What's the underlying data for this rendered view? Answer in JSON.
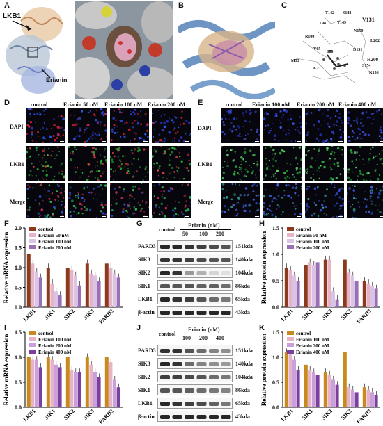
{
  "panels": {
    "A": {
      "letter": "A",
      "lkb1": "LKB1",
      "erianin": "Erianin"
    },
    "B": {
      "letter": "B"
    },
    "C": {
      "letter": "C",
      "residues": [
        "T142",
        "S148",
        "T98",
        "T149",
        "V131",
        "R100",
        "N150",
        "L202",
        "V65",
        "I75",
        "D151",
        "H200",
        "M53",
        "G76",
        "S154",
        "K27",
        "K156"
      ]
    },
    "D": {
      "letter": "D",
      "cols": [
        "control",
        "Erianin 50 nM",
        "Erianin 100 nM",
        "Erianin 200 nM"
      ],
      "rows": [
        "DAPI",
        "LKB1",
        "Merge"
      ]
    },
    "E": {
      "letter": "E",
      "cols": [
        "control",
        "Erianin 100 nM",
        "Erianin 200 nM",
        "Erianin 400 nM"
      ],
      "rows": [
        "DAPI",
        "LKB1",
        "Merge"
      ]
    },
    "G": {
      "letter": "G",
      "control": "control",
      "erianin_hdr": "Erianin (nM)",
      "doses": [
        "50",
        "100",
        "200"
      ],
      "rows": [
        {
          "name": "PARD3",
          "kda": "151kda"
        },
        {
          "name": "SIK3",
          "kda": "140kda"
        },
        {
          "name": "SIK2",
          "kda": "104kda"
        },
        {
          "name": "SIK1",
          "kda": "86kda"
        },
        {
          "name": "LKB1",
          "kda": "65kda"
        },
        {
          "name": "β-actin",
          "kda": "43kda"
        }
      ]
    },
    "J": {
      "letter": "J",
      "control": "control",
      "erianin_hdr": "Erianin (nM)",
      "doses": [
        "100",
        "200",
        "400"
      ],
      "rows": [
        {
          "name": "PARD3",
          "kda": "151kda"
        },
        {
          "name": "SIK3",
          "kda": "140kda"
        },
        {
          "name": "SIK2",
          "kda": "104kda"
        },
        {
          "name": "SIK1",
          "kda": "86kda"
        },
        {
          "name": "LKB1",
          "kda": "65kda"
        },
        {
          "name": "β-actin",
          "kda": "43kda"
        }
      ]
    }
  },
  "chart_data": [
    {
      "panel": "F",
      "type": "bar",
      "ylabel": "Relative mRNA expression",
      "ylim": [
        0,
        2.0
      ],
      "yticks": [
        "0.0",
        "0.5",
        "1.0",
        "1.5",
        "2.0"
      ],
      "categories": [
        "LKB1",
        "SIK1",
        "SIK2",
        "SIK3",
        "PARD3"
      ],
      "series": [
        {
          "name": "control",
          "color": "#8b3a1e",
          "values": [
            1.35,
            1.0,
            1.0,
            1.1,
            1.1
          ]
        },
        {
          "name": "Erianin 50 nM",
          "color": "#e7b3c8",
          "values": [
            1.1,
            0.6,
            0.95,
            0.85,
            1.0
          ]
        },
        {
          "name": "Erianin 100 nM",
          "color": "#d9c4e6",
          "values": [
            0.9,
            0.4,
            0.8,
            0.8,
            0.85
          ]
        },
        {
          "name": "Erianin 200 nM",
          "color": "#9b6fb6",
          "values": [
            0.75,
            0.3,
            0.55,
            0.65,
            0.75
          ]
        }
      ]
    },
    {
      "panel": "H",
      "type": "bar",
      "ylabel": "Relative protein expression",
      "ylim": [
        0,
        1.5
      ],
      "yticks": [
        "0.0",
        "0.5",
        "1.0",
        "1.5"
      ],
      "categories": [
        "LKB1",
        "SIK1",
        "SIK2",
        "SIK3",
        "PARD3"
      ],
      "series": [
        {
          "name": "control",
          "color": "#8b3a1e",
          "values": [
            0.75,
            0.8,
            0.9,
            0.9,
            0.5
          ]
        },
        {
          "name": "Erianin 50 nM",
          "color": "#e7b3c8",
          "values": [
            0.7,
            0.85,
            0.9,
            0.65,
            0.45
          ]
        },
        {
          "name": "Erianin 100 nM",
          "color": "#d9c4e6",
          "values": [
            0.6,
            0.8,
            0.3,
            0.6,
            0.4
          ]
        },
        {
          "name": "Erianin 200 nM",
          "color": "#9b6fb6",
          "values": [
            0.5,
            0.85,
            0.15,
            0.5,
            0.35
          ]
        }
      ]
    },
    {
      "panel": "I",
      "type": "bar",
      "ylabel": "Relative mRNA expression",
      "ylim": [
        0,
        1.5
      ],
      "yticks": [
        "0.0",
        "0.5",
        "1.0",
        "1.5"
      ],
      "categories": [
        "LKB1",
        "SIK1",
        "SIK2",
        "SIK3",
        "PARD3"
      ],
      "series": [
        {
          "name": "control",
          "color": "#c8891e",
          "values": [
            1.0,
            1.0,
            1.0,
            1.0,
            1.0
          ]
        },
        {
          "name": "Erianin 100 nM",
          "color": "#e7b3c8",
          "values": [
            0.95,
            0.95,
            0.75,
            0.85,
            0.9
          ]
        },
        {
          "name": "Erianin 200 nM",
          "color": "#c9a0dc",
          "values": [
            0.95,
            0.85,
            0.7,
            0.7,
            0.55
          ]
        },
        {
          "name": "Erianin 400 nM",
          "color": "#7b3f9e",
          "values": [
            0.8,
            0.8,
            0.7,
            0.6,
            0.4
          ]
        }
      ]
    },
    {
      "panel": "K",
      "type": "bar",
      "ylabel": "Relative protein expression",
      "ylim": [
        0,
        1.5
      ],
      "yticks": [
        "0.0",
        "0.5",
        "1.0",
        "1.5"
      ],
      "categories": [
        "LKB1",
        "SIK1",
        "SIK2",
        "SIK3",
        "PARD3"
      ],
      "series": [
        {
          "name": "control",
          "color": "#c8891e",
          "values": [
            1.1,
            0.85,
            0.7,
            1.1,
            0.4
          ]
        },
        {
          "name": "Erianin 100 nM",
          "color": "#e7b3c8",
          "values": [
            1.05,
            0.75,
            0.65,
            0.4,
            0.35
          ]
        },
        {
          "name": "Erianin 200 nM",
          "color": "#c9a0dc",
          "values": [
            0.95,
            0.7,
            0.55,
            0.35,
            0.3
          ]
        },
        {
          "name": "Erianin 400 nM",
          "color": "#7b3f9e",
          "values": [
            0.75,
            0.65,
            0.45,
            0.3,
            0.25
          ]
        }
      ]
    }
  ]
}
